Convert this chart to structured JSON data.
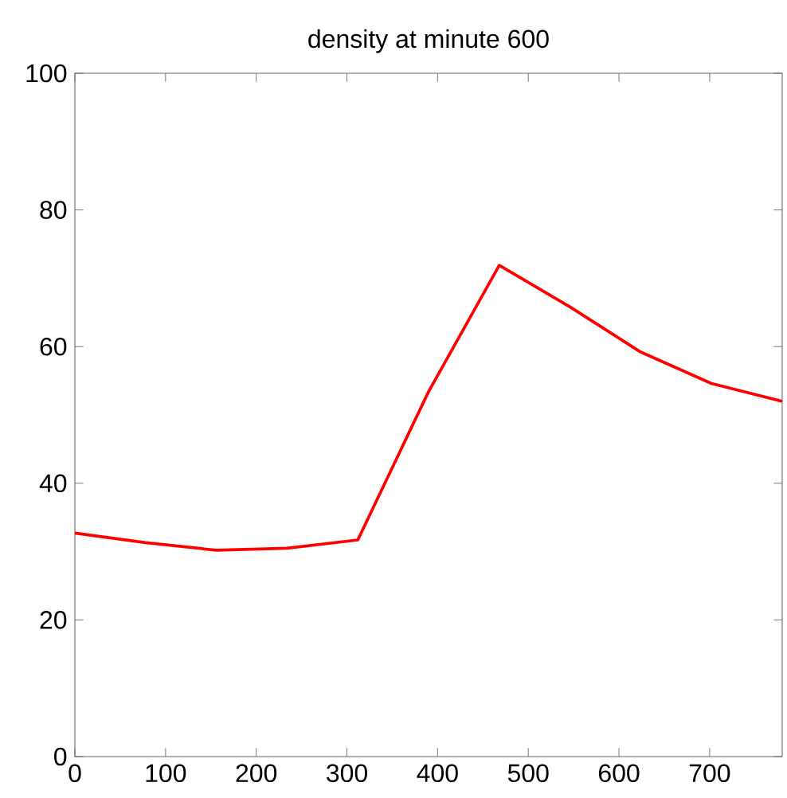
{
  "chart_data": {
    "type": "line",
    "title": "density at minute 600",
    "x": [
      0,
      78,
      156,
      234,
      312,
      390,
      468,
      546,
      624,
      702,
      780
    ],
    "series": [
      {
        "color": "#ff0000",
        "values": [
          32.7,
          31.3,
          30.2,
          30.5,
          31.7,
          53.4,
          71.9,
          65.8,
          59.2,
          54.6,
          52.0
        ]
      }
    ],
    "xlim": [
      0,
      780
    ],
    "ylim": [
      0,
      100
    ],
    "xticks": [
      0,
      100,
      200,
      300,
      400,
      500,
      600,
      700
    ],
    "yticks": [
      0,
      20,
      40,
      60,
      80,
      100
    ],
    "grid": false,
    "marker": "none",
    "line_style": "solid"
  }
}
